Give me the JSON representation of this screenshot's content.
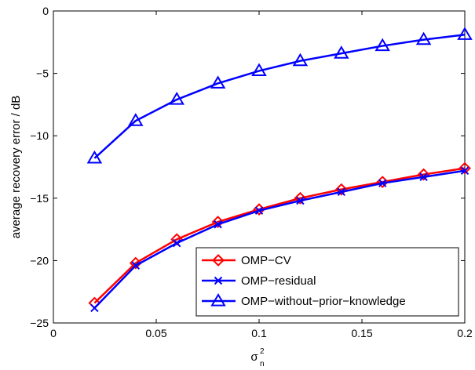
{
  "chart_data": {
    "type": "line",
    "xlabel": "σ",
    "xlabel_superscript": "2",
    "xlabel_subscript": "n",
    "ylabel": "average recovery error / dB",
    "xlim": [
      0,
      0.2
    ],
    "ylim": [
      -25,
      0
    ],
    "xticks": [
      0,
      0.05,
      0.1,
      0.15,
      0.2
    ],
    "xtick_labels": [
      "0",
      "0.05",
      "0.1",
      "0.15",
      "0.2"
    ],
    "yticks": [
      -25,
      -20,
      -15,
      -10,
      -5,
      0
    ],
    "ytick_labels": [
      "−25",
      "−20",
      "−15",
      "−10",
      "−5",
      "0"
    ],
    "grid": false,
    "legend_position": "bottom-right",
    "x": [
      0.02,
      0.04,
      0.06,
      0.08,
      0.1,
      0.12,
      0.14,
      0.16,
      0.18,
      0.2
    ],
    "series": [
      {
        "name": "OMP−CV",
        "color": "#ff0000",
        "marker": "diamond",
        "values": [
          -23.4,
          -20.2,
          -18.3,
          -16.9,
          -15.9,
          -15.0,
          -14.3,
          -13.7,
          -13.1,
          -12.6
        ]
      },
      {
        "name": "OMP−residual",
        "color": "#0000ff",
        "marker": "x",
        "values": [
          -23.8,
          -20.4,
          -18.6,
          -17.1,
          -16.0,
          -15.2,
          -14.5,
          -13.8,
          -13.3,
          -12.8
        ]
      },
      {
        "name": "OMP−without−prior−knowledge",
        "color": "#0000ff",
        "marker": "triangle",
        "values": [
          -11.8,
          -8.8,
          -7.1,
          -5.8,
          -4.8,
          -4.0,
          -3.4,
          -2.8,
          -2.3,
          -1.9
        ]
      }
    ]
  }
}
